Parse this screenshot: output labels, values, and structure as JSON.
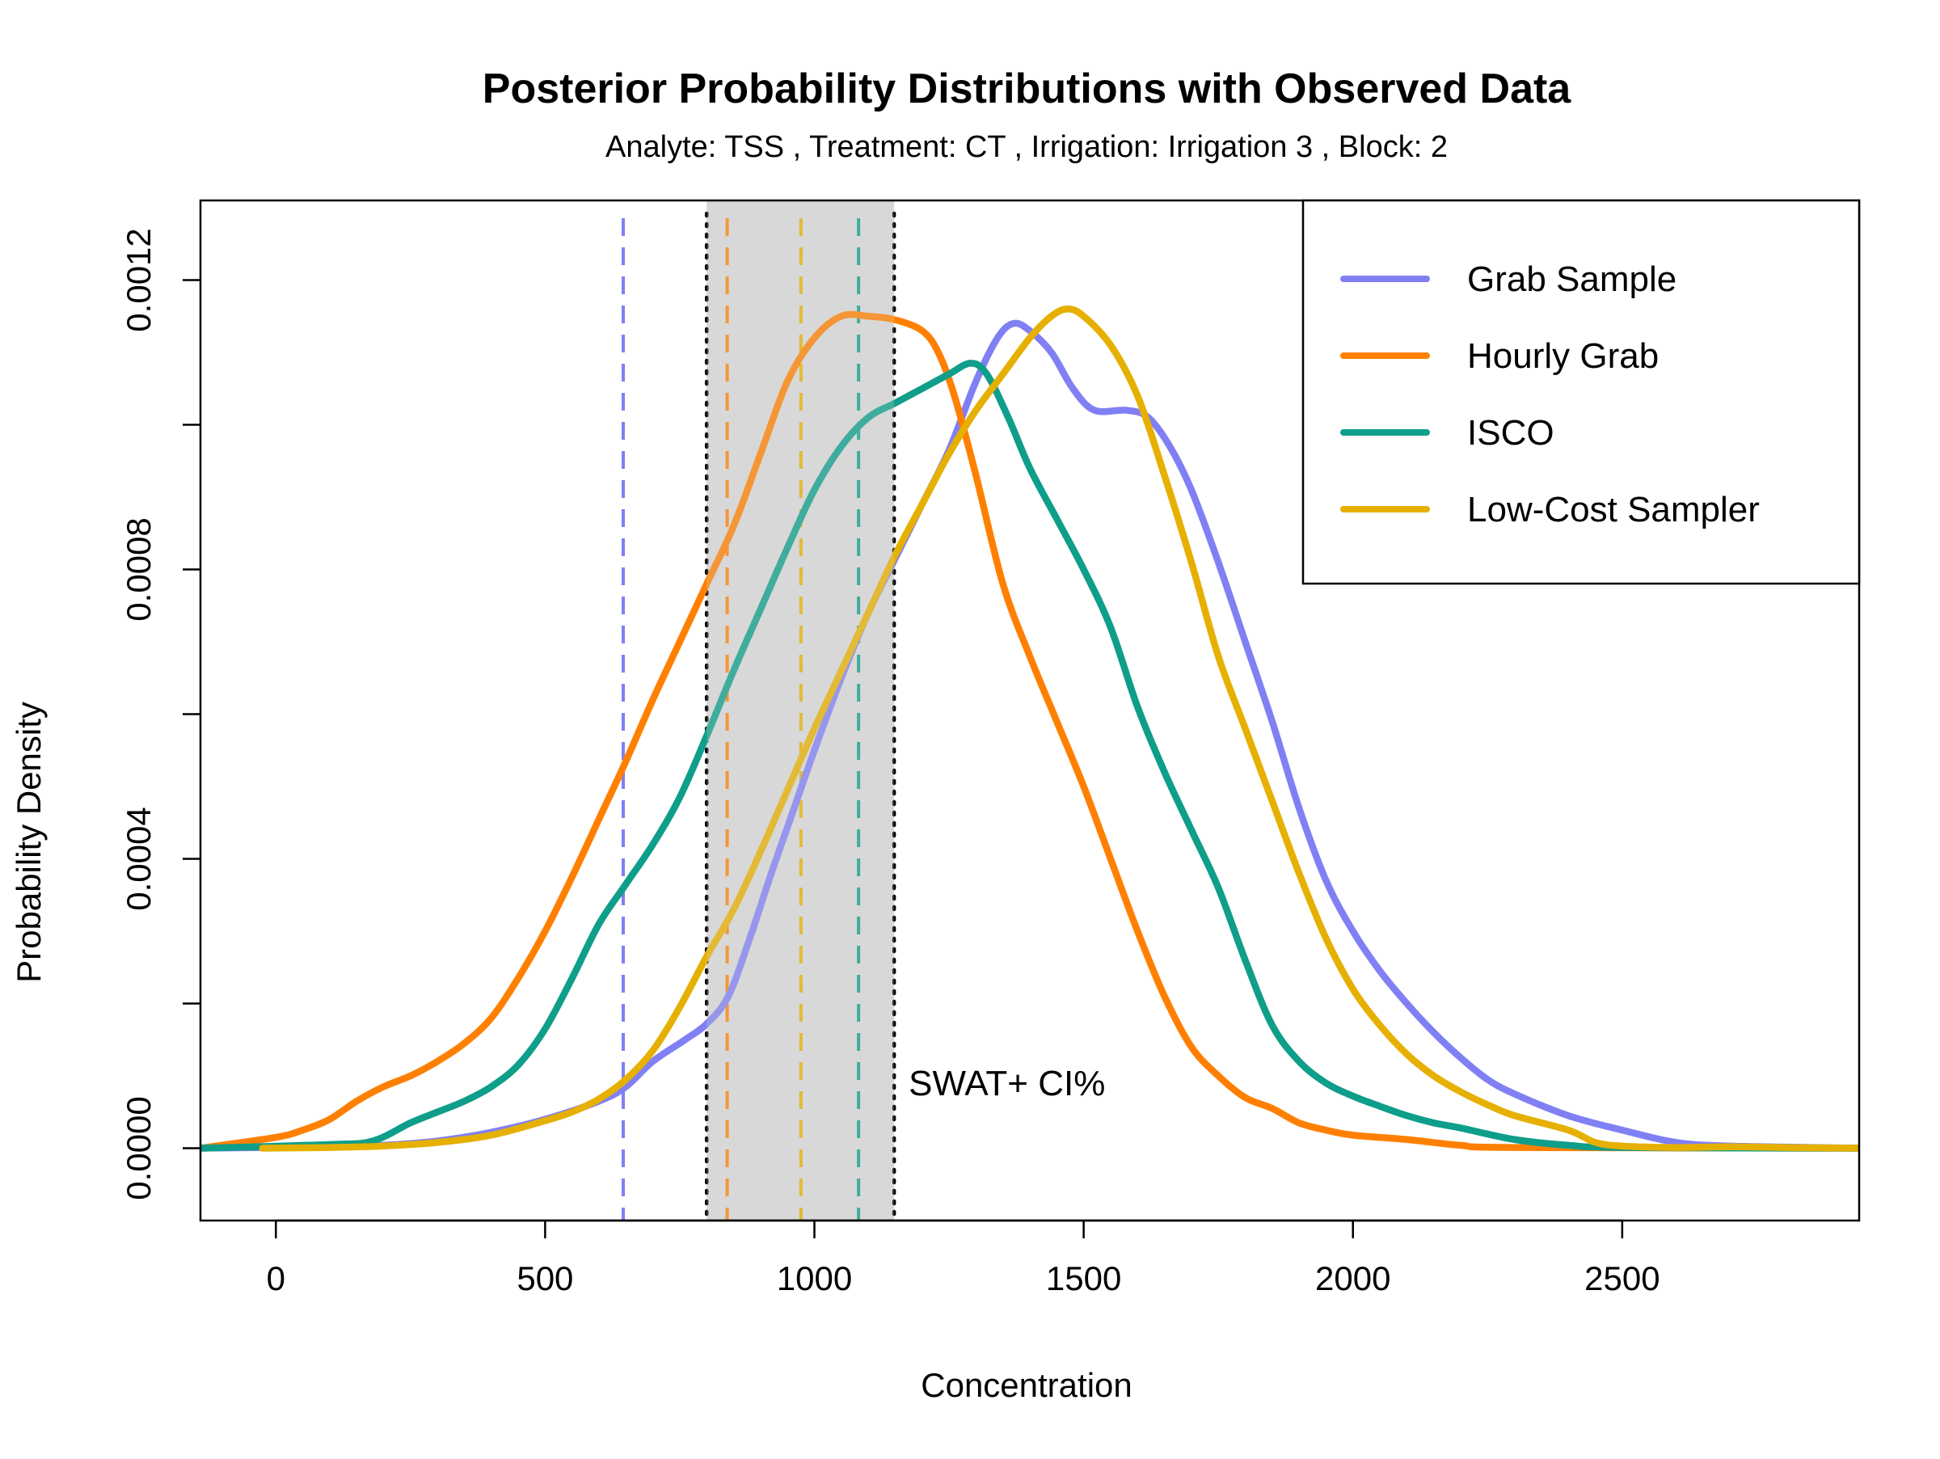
{
  "chart_data": {
    "type": "line",
    "title": "Posterior Probability Distributions with Observed Data",
    "subtitle": "Analyte: TSS , Treatment: CT , Irrigation: Irrigation 3 , Block: 2",
    "xlabel": "Concentration",
    "ylabel": "Probability Density",
    "xlim": [
      -140,
      2940
    ],
    "ylim": [
      -0.0001,
      0.00131
    ],
    "x_ticks": [
      0,
      500,
      1000,
      1500,
      2000,
      2500
    ],
    "x_tick_labels": [
      "0",
      "500",
      "1000",
      "1500",
      "2000",
      "2500"
    ],
    "y_ticks": [
      0,
      0.0002,
      0.0004,
      0.0006,
      0.0008,
      0.001,
      0.0012
    ],
    "y_tick_labels": [
      "0.0000",
      "",
      "0.0004",
      "",
      "0.0008",
      "",
      "0.0012"
    ],
    "grid": false,
    "legend_position": "top-right",
    "ci_band": {
      "x0": 800,
      "x1": 1148,
      "color": "#d9d9d9",
      "label": "SWAT+ CI%"
    },
    "series": [
      {
        "name": "Grab Sample",
        "color": "#8080f4",
        "observed": 645,
        "points": [
          [
            -140,
            0
          ],
          [
            100,
            2e-06
          ],
          [
            200,
            4e-06
          ],
          [
            300,
            1e-05
          ],
          [
            400,
            2.2e-05
          ],
          [
            500,
            4e-05
          ],
          [
            600,
            6.5e-05
          ],
          [
            650,
            8.5e-05
          ],
          [
            700,
            0.00012
          ],
          [
            760,
            0.00015
          ],
          [
            800,
            0.000172
          ],
          [
            840,
            0.00021
          ],
          [
            880,
            0.00029
          ],
          [
            920,
            0.00038
          ],
          [
            960,
            0.000465
          ],
          [
            1000,
            0.00055
          ],
          [
            1050,
            0.00065
          ],
          [
            1100,
            0.00074
          ],
          [
            1150,
            0.000815
          ],
          [
            1200,
            0.00089
          ],
          [
            1250,
            0.000965
          ],
          [
            1300,
            0.00106
          ],
          [
            1340,
            0.00112
          ],
          [
            1370,
            0.00114
          ],
          [
            1400,
            0.00113
          ],
          [
            1440,
            0.0011
          ],
          [
            1480,
            0.00105
          ],
          [
            1520,
            0.00102
          ],
          [
            1580,
            0.00102
          ],
          [
            1620,
            0.00101
          ],
          [
            1660,
            0.00097
          ],
          [
            1700,
            0.00091
          ],
          [
            1750,
            0.00081
          ],
          [
            1800,
            0.0007
          ],
          [
            1850,
            0.00059
          ],
          [
            1900,
            0.00047
          ],
          [
            1950,
            0.00037
          ],
          [
            2000,
            0.0003
          ],
          [
            2050,
            0.000245
          ],
          [
            2100,
            0.0002
          ],
          [
            2150,
            0.00016
          ],
          [
            2200,
            0.000125
          ],
          [
            2250,
            9.5e-05
          ],
          [
            2300,
            7.5e-05
          ],
          [
            2400,
            4.5e-05
          ],
          [
            2500,
            2.5e-05
          ],
          [
            2600,
            8e-06
          ],
          [
            2700,
            3e-06
          ],
          [
            2940,
            0
          ]
        ]
      },
      {
        "name": "Hourly Grab",
        "color": "#ff8000",
        "observed": 838,
        "points": [
          [
            -140,
            0
          ],
          [
            0,
            1.5e-05
          ],
          [
            50,
            2.5e-05
          ],
          [
            100,
            4e-05
          ],
          [
            150,
            6.5e-05
          ],
          [
            200,
            8.5e-05
          ],
          [
            250,
            0.0001
          ],
          [
            300,
            0.00012
          ],
          [
            350,
            0.000145
          ],
          [
            400,
            0.00018
          ],
          [
            450,
            0.000235
          ],
          [
            500,
            0.0003
          ],
          [
            550,
            0.000375
          ],
          [
            600,
            0.000455
          ],
          [
            650,
            0.000535
          ],
          [
            700,
            0.00062
          ],
          [
            750,
            0.0007
          ],
          [
            800,
            0.00078
          ],
          [
            850,
            0.00086
          ],
          [
            900,
            0.00096
          ],
          [
            950,
            0.00106
          ],
          [
            1000,
            0.00112
          ],
          [
            1050,
            0.00115
          ],
          [
            1100,
            0.00115
          ],
          [
            1150,
            0.001145
          ],
          [
            1200,
            0.00113
          ],
          [
            1230,
            0.0011
          ],
          [
            1260,
            0.00104
          ],
          [
            1300,
            0.00093
          ],
          [
            1350,
            0.00078
          ],
          [
            1400,
            0.00068
          ],
          [
            1450,
            0.00059
          ],
          [
            1500,
            0.0005
          ],
          [
            1550,
            0.0004
          ],
          [
            1600,
            0.0003
          ],
          [
            1650,
            0.00021
          ],
          [
            1700,
            0.00014
          ],
          [
            1750,
            0.0001
          ],
          [
            1800,
            7e-05
          ],
          [
            1850,
            5.5e-05
          ],
          [
            1900,
            3.5e-05
          ],
          [
            1950,
            2.5e-05
          ],
          [
            2000,
            1.8e-05
          ],
          [
            2100,
            1.2e-05
          ],
          [
            2200,
            4e-06
          ],
          [
            2300,
            1e-06
          ],
          [
            2940,
            0
          ]
        ]
      },
      {
        "name": "ISCO",
        "color": "#0e9e8a",
        "observed": 1082,
        "points": [
          [
            -140,
            0
          ],
          [
            100,
            5e-06
          ],
          [
            180,
            1e-05
          ],
          [
            250,
            3.5e-05
          ],
          [
            300,
            5e-05
          ],
          [
            350,
            6.5e-05
          ],
          [
            400,
            8.5e-05
          ],
          [
            450,
            0.000115
          ],
          [
            500,
            0.000165
          ],
          [
            550,
            0.000235
          ],
          [
            600,
            0.00031
          ],
          [
            650,
            0.000365
          ],
          [
            700,
            0.00042
          ],
          [
            750,
            0.000485
          ],
          [
            800,
            0.00057
          ],
          [
            850,
            0.00066
          ],
          [
            900,
            0.000745
          ],
          [
            950,
            0.00083
          ],
          [
            1000,
            0.00091
          ],
          [
            1050,
            0.00097
          ],
          [
            1100,
            0.00101
          ],
          [
            1150,
            0.00103
          ],
          [
            1200,
            0.00105
          ],
          [
            1250,
            0.00107
          ],
          [
            1290,
            0.001085
          ],
          [
            1320,
            0.00107
          ],
          [
            1360,
            0.00101
          ],
          [
            1400,
            0.00094
          ],
          [
            1450,
            0.00087
          ],
          [
            1500,
            0.0008
          ],
          [
            1550,
            0.00072
          ],
          [
            1600,
            0.00061
          ],
          [
            1650,
            0.00052
          ],
          [
            1700,
            0.00044
          ],
          [
            1750,
            0.00036
          ],
          [
            1800,
            0.00026
          ],
          [
            1850,
            0.00017
          ],
          [
            1900,
            0.00012
          ],
          [
            1950,
            9e-05
          ],
          [
            2000,
            7.2e-05
          ],
          [
            2050,
            5.8e-05
          ],
          [
            2100,
            4.5e-05
          ],
          [
            2150,
            3.5e-05
          ],
          [
            2200,
            2.8e-05
          ],
          [
            2300,
            1.2e-05
          ],
          [
            2400,
            4e-06
          ],
          [
            2500,
            1e-06
          ],
          [
            2940,
            0
          ]
        ]
      },
      {
        "name": "Low-Cost Sampler",
        "color": "#e6b000",
        "observed": 975,
        "points": [
          [
            -25,
            0
          ],
          [
            100,
            1e-06
          ],
          [
            200,
            3e-06
          ],
          [
            300,
            8e-06
          ],
          [
            400,
            1.8e-05
          ],
          [
            500,
            3.8e-05
          ],
          [
            550,
            5e-05
          ],
          [
            600,
            6.8e-05
          ],
          [
            650,
            9.5e-05
          ],
          [
            700,
            0.000135
          ],
          [
            750,
            0.000195
          ],
          [
            800,
            0.000265
          ],
          [
            850,
            0.00033
          ],
          [
            900,
            0.00041
          ],
          [
            950,
            0.000495
          ],
          [
            1000,
            0.00058
          ],
          [
            1050,
            0.00066
          ],
          [
            1100,
            0.00074
          ],
          [
            1150,
            0.00082
          ],
          [
            1200,
            0.00089
          ],
          [
            1250,
            0.00096
          ],
          [
            1300,
            0.00102
          ],
          [
            1350,
            0.00107
          ],
          [
            1400,
            0.00112
          ],
          [
            1440,
            0.00115
          ],
          [
            1470,
            0.00116
          ],
          [
            1500,
            0.00115
          ],
          [
            1550,
            0.00111
          ],
          [
            1600,
            0.00104
          ],
          [
            1650,
            0.00093
          ],
          [
            1700,
            0.00081
          ],
          [
            1750,
            0.00068
          ],
          [
            1800,
            0.00058
          ],
          [
            1850,
            0.00048
          ],
          [
            1900,
            0.00038
          ],
          [
            1950,
            0.00029
          ],
          [
            2000,
            0.00022
          ],
          [
            2050,
            0.00017
          ],
          [
            2100,
            0.00013
          ],
          [
            2150,
            0.0001
          ],
          [
            2200,
            7.8e-05
          ],
          [
            2250,
            6e-05
          ],
          [
            2300,
            4.5e-05
          ],
          [
            2400,
            2.5e-05
          ],
          [
            2450,
            8e-06
          ],
          [
            2500,
            3e-06
          ],
          [
            2600,
            1e-06
          ],
          [
            2700,
            2e-06
          ],
          [
            2800,
            1e-06
          ],
          [
            2940,
            0
          ]
        ]
      }
    ]
  }
}
